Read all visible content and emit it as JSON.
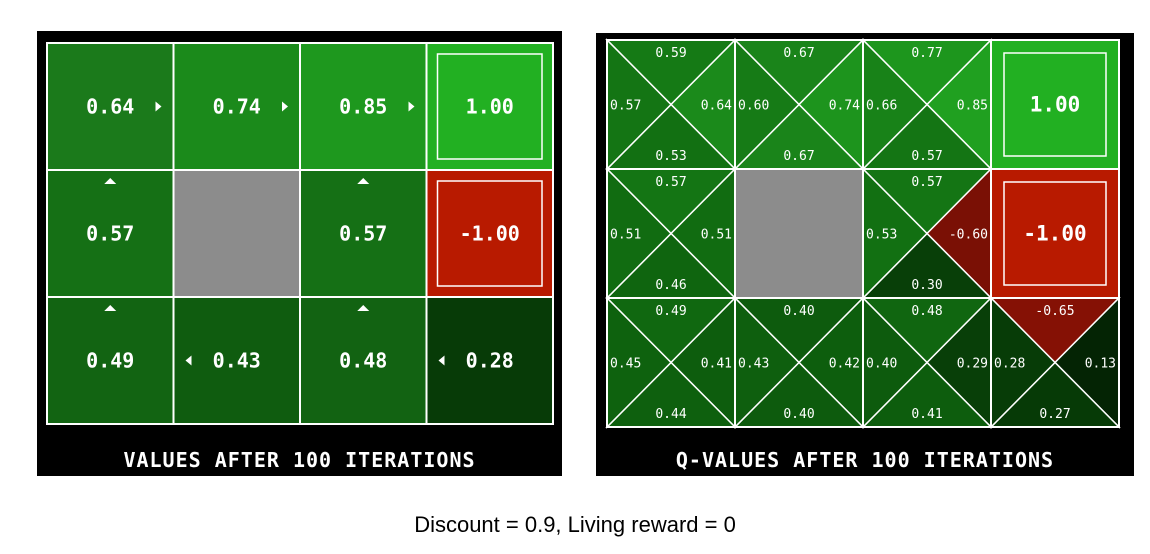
{
  "values_panel": {
    "title": "VALUES AFTER 100 ITERATIONS",
    "grid": [
      [
        {
          "value": "0.64",
          "arrow": "right",
          "color": "#1b7a1b"
        },
        {
          "value": "0.74",
          "arrow": "right",
          "color": "#1b8a1b"
        },
        {
          "value": "0.85",
          "arrow": "right",
          "color": "#1e981e"
        },
        {
          "value": "1.00",
          "arrow": "",
          "color": "#22b022",
          "terminal": true
        }
      ],
      [
        {
          "value": "0.57",
          "arrow": "up",
          "color": "#157015"
        },
        {
          "value": "",
          "wall": true,
          "color": "#8c8c8c"
        },
        {
          "value": "0.57",
          "arrow": "up",
          "color": "#157015"
        },
        {
          "value": "-1.00",
          "arrow": "",
          "color": "#b81a00",
          "terminal": true
        }
      ],
      [
        {
          "value": "0.49",
          "arrow": "up",
          "color": "#126412"
        },
        {
          "value": "0.43",
          "arrow": "left",
          "color": "#0f5c0f"
        },
        {
          "value": "0.48",
          "arrow": "up",
          "color": "#126312"
        },
        {
          "value": "0.28",
          "arrow": "left",
          "color": "#073b07"
        }
      ]
    ]
  },
  "qvalues_panel": {
    "title": "Q-VALUES AFTER 100 ITERATIONS",
    "grid": [
      [
        {
          "n": "0.59",
          "e": "0.64",
          "s": "0.53",
          "w": "0.57",
          "colors": {
            "n": "#157a15",
            "e": "#1b8a1b",
            "s": "#127012",
            "w": "#147514"
          }
        },
        {
          "n": "0.67",
          "e": "0.74",
          "s": "0.67",
          "w": "0.60",
          "colors": {
            "n": "#1a841a",
            "e": "#1d941d",
            "s": "#1a841a",
            "w": "#167b16"
          }
        },
        {
          "n": "0.77",
          "e": "0.85",
          "s": "0.57",
          "w": "0.66",
          "colors": {
            "n": "#1d961d",
            "e": "#20a020",
            "s": "#147514",
            "w": "#188218"
          }
        },
        {
          "terminal": true,
          "value": "1.00",
          "color": "#22b022"
        }
      ],
      [
        {
          "n": "0.57",
          "e": "0.51",
          "s": "0.46",
          "w": "0.51",
          "colors": {
            "n": "#147514",
            "e": "#116c11",
            "s": "#0f650f",
            "w": "#116c11"
          }
        },
        {
          "wall": true,
          "color": "#8c8c8c"
        },
        {
          "n": "0.57",
          "e": "-0.60",
          "s": "0.30",
          "w": "0.53",
          "colors": {
            "n": "#147514",
            "e": "#7a1005",
            "s": "#083f08",
            "w": "#127012"
          }
        },
        {
          "terminal": true,
          "value": "-1.00",
          "color": "#b81a00"
        }
      ],
      [
        {
          "n": "0.49",
          "e": "0.41",
          "s": "0.44",
          "w": "0.45",
          "colors": {
            "n": "#106810",
            "e": "#0d5d0d",
            "s": "#0e600e",
            "w": "#0e620e"
          }
        },
        {
          "n": "0.40",
          "e": "0.42",
          "s": "0.40",
          "w": "0.43",
          "colors": {
            "n": "#0d5b0d",
            "e": "#0d5e0d",
            "s": "#0d5b0d",
            "w": "#0e5f0e"
          }
        },
        {
          "n": "0.48",
          "e": "0.29",
          "s": "0.41",
          "w": "0.40",
          "colors": {
            "n": "#106610",
            "e": "#083f08",
            "s": "#0d5d0d",
            "w": "#0d5b0d"
          }
        },
        {
          "n": "-0.65",
          "e": "0.13",
          "s": "0.27",
          "w": "0.28",
          "colors": {
            "n": "#851105",
            "e": "#042404",
            "s": "#063a06",
            "w": "#073c07"
          }
        }
      ]
    ]
  },
  "caption": "Discount = 0.9, Living reward = 0"
}
